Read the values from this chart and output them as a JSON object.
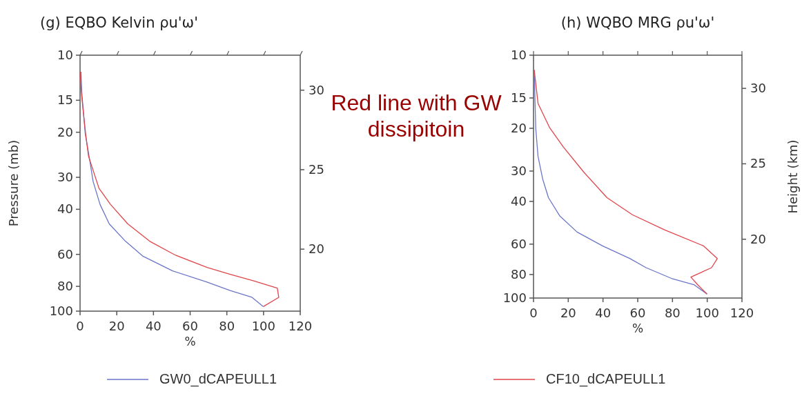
{
  "chart_data": [
    {
      "type": "line",
      "title": "(g) EQBO Kelvin ρu'ω'",
      "xlabel": "%",
      "ylabel": "Pressure (mb)",
      "xlim": [
        0,
        120
      ],
      "xticks": [
        0,
        20,
        40,
        60,
        80,
        100,
        120
      ],
      "ylim": [
        100,
        10
      ],
      "yticks": [
        10,
        15,
        20,
        30,
        40,
        60,
        80,
        100
      ],
      "log": "y",
      "y2lim": [
        16.1,
        32.2
      ],
      "y2ticks": [
        20,
        25,
        30
      ],
      "grid": false,
      "legend": "bottom",
      "line_style": "solid",
      "marker": "none",
      "annotations": [
        "Red line with GW dissipitoin"
      ],
      "series": [
        {
          "name": "GW0_dCAPEULL1",
          "color": "#6a75c8",
          "x": [
            0.5,
            0.9,
            2.8,
            5.3,
            7.1,
            10.9,
            15.9,
            24.7,
            34.1,
            50.4,
            69.2,
            81.8,
            93.7,
            99.9
          ],
          "values": [
            11.6,
            13.9,
            20.2,
            25.8,
            31.1,
            38.3,
            45.6,
            53.3,
            60.9,
            69.6,
            77,
            83.1,
            88.3,
            96
          ]
        },
        {
          "name": "CF10_dCAPEULL1",
          "color": "#e0454a",
          "x": [
            0,
            0.9,
            3,
            4.6,
            10.3,
            16.6,
            26,
            37.9,
            51.7,
            69.2,
            81.8,
            94.3,
            107.5,
            108.3,
            99.9
          ],
          "values": [
            11.6,
            14.5,
            20.2,
            24.8,
            33.1,
            38.3,
            45.6,
            53.3,
            60.3,
            67.5,
            71.8,
            76,
            81.3,
            88.3,
            96
          ]
        }
      ]
    },
    {
      "type": "line",
      "title": "(h) WQBO MRG ρu'ω'",
      "xlabel": "%",
      "y2label": "Height (km)",
      "xlim": [
        0,
        120
      ],
      "xticks": [
        0,
        20,
        40,
        60,
        80,
        100,
        120
      ],
      "ylim": [
        100,
        10
      ],
      "yticks": [
        10,
        15,
        20,
        30,
        40,
        60,
        80,
        100
      ],
      "log": "y",
      "y2lim": [
        16.1,
        32.2
      ],
      "y2ticks": [
        20,
        25,
        30
      ],
      "grid": false,
      "line_style": "solid",
      "marker": "none",
      "series": [
        {
          "color": "#6a75c8",
          "x": [
            0.4,
            0.9,
            1.3,
            2.6,
            5.3,
            8.6,
            15.2,
            25.1,
            39.7,
            55.6,
            64.8,
            79.4,
            92.6,
            99.9
          ],
          "values": [
            11.5,
            15.8,
            20.1,
            26.1,
            32.4,
            38.6,
            46,
            53.5,
            61,
            68.8,
            75,
            83,
            88.3,
            96.3
          ]
        },
        {
          "color": "#e0454a",
          "x": [
            0.4,
            2.6,
            9.3,
            17.2,
            29.1,
            42.3,
            56.9,
            75.4,
            97.9,
            105.8,
            102.5,
            90.6,
            94.6,
            99.9
          ],
          "values": [
            11.5,
            15.8,
            19.9,
            23.9,
            30.4,
            38.6,
            45.4,
            52.4,
            61,
            68.8,
            75,
            82,
            88.3,
            96.3
          ]
        }
      ]
    }
  ]
}
